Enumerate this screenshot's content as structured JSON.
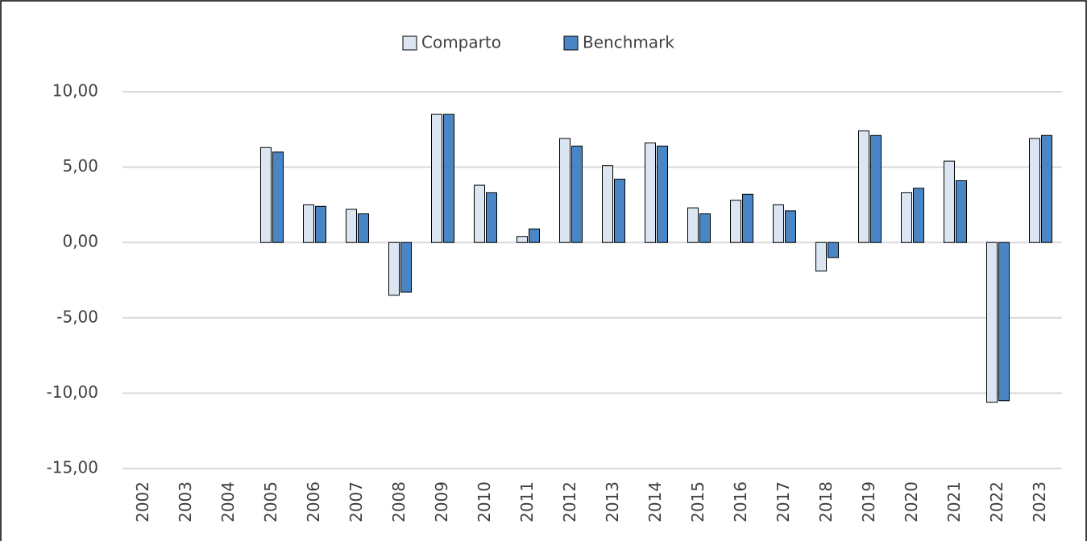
{
  "chart_data": {
    "type": "bar",
    "categories": [
      "2002",
      "2003",
      "2004",
      "2005",
      "2006",
      "2007",
      "2008",
      "2009",
      "2010",
      "2011",
      "2012",
      "2013",
      "2014",
      "2015",
      "2016",
      "2017",
      "2018",
      "2019",
      "2020",
      "2021",
      "2022",
      "2023"
    ],
    "series": [
      {
        "name": "Comparto",
        "color": "#dce6f2",
        "values": [
          null,
          null,
          null,
          6.3,
          2.5,
          2.2,
          -3.5,
          8.5,
          3.8,
          0.4,
          6.9,
          5.1,
          6.6,
          2.3,
          2.8,
          2.5,
          -1.9,
          7.4,
          3.3,
          5.4,
          -10.6,
          6.9
        ]
      },
      {
        "name": "Benchmark",
        "color": "#4a86c6",
        "values": [
          null,
          null,
          null,
          6.0,
          2.4,
          1.9,
          -3.3,
          8.5,
          3.3,
          0.9,
          6.4,
          4.2,
          6.4,
          1.9,
          3.2,
          2.1,
          -1.0,
          7.1,
          3.6,
          4.1,
          -10.5,
          7.1
        ]
      }
    ],
    "ylim": [
      -15,
      10
    ],
    "yticks": [
      {
        "value": -15,
        "label": "-15,00"
      },
      {
        "value": -10,
        "label": "-10,00"
      },
      {
        "value": -5,
        "label": "-5,00"
      },
      {
        "value": 0,
        "label": "0,00"
      },
      {
        "value": 5,
        "label": "5,00"
      },
      {
        "value": 10,
        "label": "10,00"
      }
    ],
    "grid": true,
    "legend": "top"
  }
}
